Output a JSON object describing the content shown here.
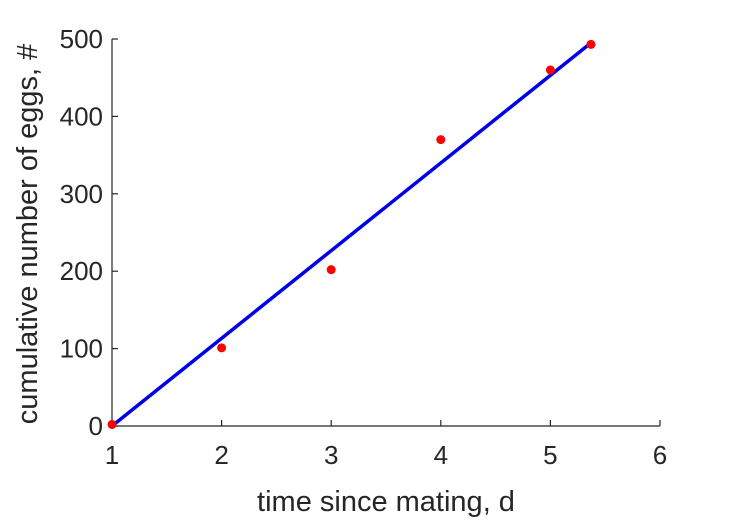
{
  "chart_data": {
    "type": "scatter",
    "title": "",
    "xlabel": "time since mating, d",
    "ylabel": "cumulative number of eggs, #",
    "xlim": [
      1,
      6
    ],
    "ylim": [
      0,
      500
    ],
    "xticks": [
      1,
      2,
      3,
      4,
      5,
      6
    ],
    "yticks": [
      0,
      100,
      200,
      300,
      400,
      500
    ],
    "grid": false,
    "series": [
      {
        "type": "scatter",
        "color": "#ff0000",
        "x": [
          1,
          2,
          3,
          4,
          5,
          5.37
        ],
        "y": [
          2,
          101,
          202,
          370,
          460,
          493
        ]
      },
      {
        "type": "line",
        "color": "#0000e6",
        "x": [
          1,
          5.37
        ],
        "y": [
          0,
          495
        ]
      }
    ]
  }
}
